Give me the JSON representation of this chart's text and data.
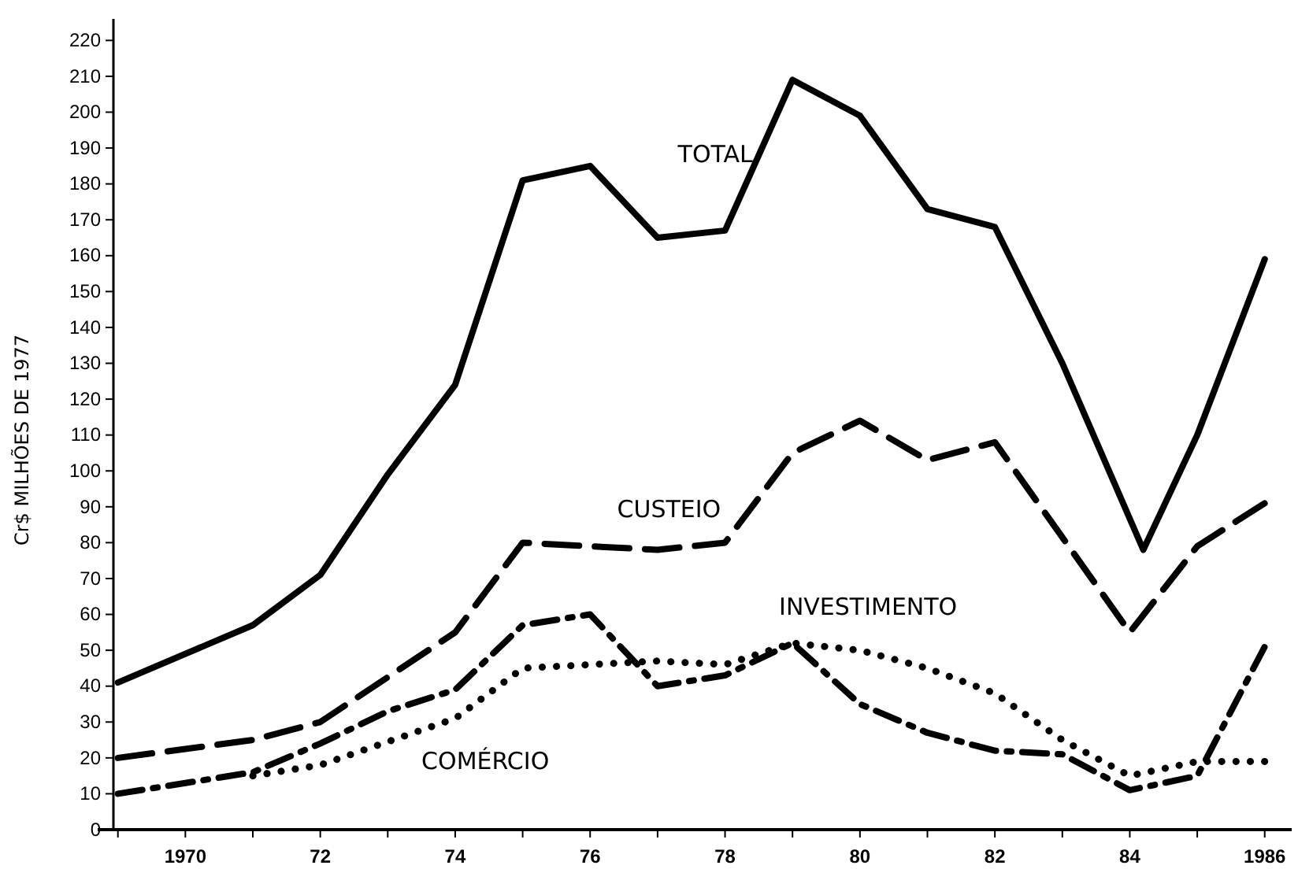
{
  "chart_data": {
    "type": "line",
    "ylabel": "Cr$ MILHÕES DE 1977",
    "xlim": [
      1968.7,
      1986.4
    ],
    "ylim": [
      0,
      226
    ],
    "xticks": [
      {
        "value": 1969,
        "label": null
      },
      1970,
      {
        "value": 1971,
        "label": null
      },
      {
        "value": 1972,
        "label": "72"
      },
      {
        "value": 1973,
        "label": null
      },
      {
        "value": 1974,
        "label": "74"
      },
      {
        "value": 1975,
        "label": null
      },
      {
        "value": 1976,
        "label": "76"
      },
      {
        "value": 1977,
        "label": null
      },
      {
        "value": 1978,
        "label": "78"
      },
      {
        "value": 1979,
        "label": null
      },
      {
        "value": 1980,
        "label": "80"
      },
      {
        "value": 1981,
        "label": null
      },
      {
        "value": 1982,
        "label": "82"
      },
      {
        "value": 1983,
        "label": null
      },
      {
        "value": 1984,
        "label": "84"
      },
      {
        "value": 1985,
        "label": null
      },
      1986
    ],
    "yticks": [
      0,
      10,
      20,
      30,
      40,
      50,
      60,
      70,
      80,
      90,
      100,
      110,
      120,
      130,
      140,
      150,
      160,
      170,
      180,
      190,
      200,
      210,
      220
    ],
    "grid": false,
    "legend": false,
    "marker": "none",
    "series": [
      {
        "name": "TOTAL",
        "color": "#000000",
        "line_style": "solid",
        "x": [
          1969,
          1971,
          1972,
          1973,
          1974,
          1975,
          1976,
          1977,
          1978,
          1979,
          1980,
          1981,
          1982,
          1983,
          1984.2,
          1985,
          1986
        ],
        "values": [
          41,
          57,
          71,
          99,
          124,
          181,
          185,
          165,
          167,
          209,
          199,
          173,
          168,
          130,
          78,
          110,
          159
        ]
      },
      {
        "name": "CUSTEIO",
        "color": "#000000",
        "line_style": "dashed",
        "x": [
          1969,
          1971,
          1972,
          1974,
          1975,
          1976,
          1977,
          1978,
          1979,
          1980,
          1981,
          1982,
          1984,
          1985,
          1986
        ],
        "values": [
          20,
          25,
          30,
          55,
          80,
          79,
          78,
          80,
          105,
          114,
          103,
          108,
          55,
          79,
          91
        ]
      },
      {
        "name": "INVESTIMENTO",
        "color": "#000000",
        "line_style": "dashdot",
        "x": [
          1969,
          1971,
          1972,
          1973,
          1974,
          1975,
          1976,
          1977,
          1978,
          1979,
          1980,
          1981,
          1982,
          1983,
          1984,
          1985,
          1986
        ],
        "values": [
          10,
          16,
          24,
          33,
          39,
          57,
          60,
          40,
          43,
          52,
          35,
          27,
          22,
          21,
          11,
          15,
          51
        ]
      },
      {
        "name": "COMÉRCIO",
        "color": "#000000",
        "line_style": "dotted",
        "x": [
          1971,
          1972,
          1974,
          1975,
          1976,
          1977,
          1978,
          1979,
          1980,
          1981,
          1982,
          1983,
          1984,
          1985,
          1986
        ],
        "values": [
          15,
          18,
          31,
          45,
          46,
          47,
          46,
          52,
          50,
          45,
          38,
          25,
          15,
          19,
          19
        ]
      }
    ]
  }
}
